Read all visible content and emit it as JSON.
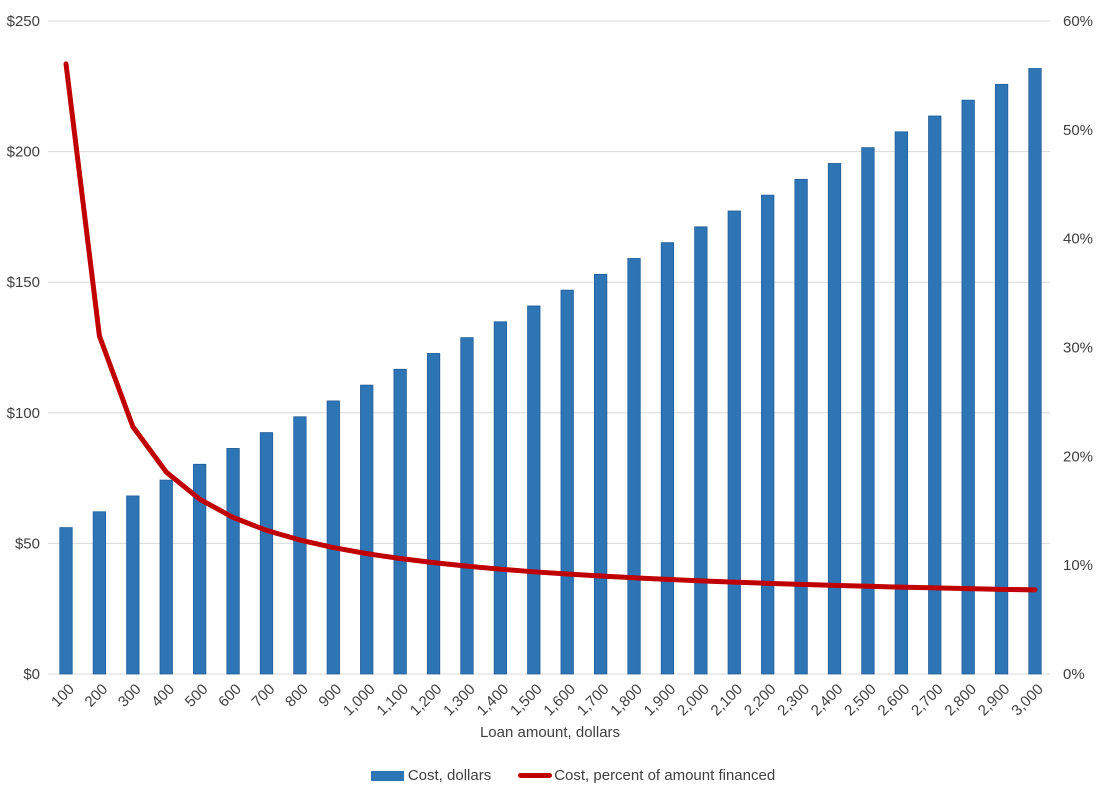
{
  "chart_data": {
    "type": "combo (bar + line, dual axis)",
    "xlabel": "Loan amount, dollars",
    "categories": [
      100,
      200,
      300,
      400,
      500,
      600,
      700,
      800,
      900,
      1000,
      1100,
      1200,
      1300,
      1400,
      1500,
      1600,
      1700,
      1800,
      1900,
      2000,
      2100,
      2200,
      2300,
      2400,
      2500,
      2600,
      2700,
      2800,
      2900,
      3000
    ],
    "x_tick_labels": [
      "100",
      "200",
      "300",
      "400",
      "500",
      "600",
      "700",
      "800",
      "900",
      "1,000",
      "1,100",
      "1,200",
      "1,300",
      "1,400",
      "1,500",
      "1,600",
      "1,700",
      "1,800",
      "1,900",
      "2,000",
      "2,100",
      "2,200",
      "2,300",
      "2,400",
      "2,500",
      "2,600",
      "2,700",
      "2,800",
      "2,900",
      "3,000"
    ],
    "series": [
      {
        "name": "Cost, dollars",
        "type": "bar",
        "axis": "left",
        "color": "#2E75B6",
        "values": [
          56.06,
          62.12,
          68.18,
          74.24,
          80.3,
          86.36,
          92.43,
          98.49,
          104.55,
          110.61,
          116.67,
          122.73,
          128.79,
          134.85,
          140.91,
          146.97,
          153.03,
          159.09,
          165.15,
          171.21,
          177.27,
          183.34,
          189.4,
          195.46,
          201.52,
          207.58,
          213.64,
          219.7,
          225.76,
          231.82
        ]
      },
      {
        "name": "Cost, percent of amount financed",
        "type": "line",
        "axis": "right",
        "color": "#C00000",
        "values": [
          56.06,
          31.06,
          22.73,
          18.56,
          16.06,
          14.39,
          13.2,
          12.31,
          11.62,
          11.06,
          10.61,
          10.23,
          9.91,
          9.63,
          9.39,
          9.19,
          9.0,
          8.84,
          8.69,
          8.56,
          8.44,
          8.33,
          8.23,
          8.14,
          8.06,
          7.98,
          7.91,
          7.85,
          7.78,
          7.73
        ]
      }
    ],
    "left_axis": {
      "min": 0,
      "max": 250,
      "step": 50,
      "tick_labels": [
        "$0",
        "$50",
        "$100",
        "$150",
        "$200",
        "$250"
      ]
    },
    "right_axis": {
      "min": 0,
      "max": 60,
      "step": 10,
      "tick_labels": [
        "0%",
        "10%",
        "20%",
        "30%",
        "40%",
        "50%",
        "60%"
      ]
    },
    "grid": true,
    "legend_position": "bottom",
    "colors": {
      "bar_fill": "#2E75B6",
      "bar_border": "#1F5C99",
      "line": "#C00000",
      "grid": "#D9D9D9",
      "text": "#404040",
      "background": "#FFFFFF"
    }
  }
}
